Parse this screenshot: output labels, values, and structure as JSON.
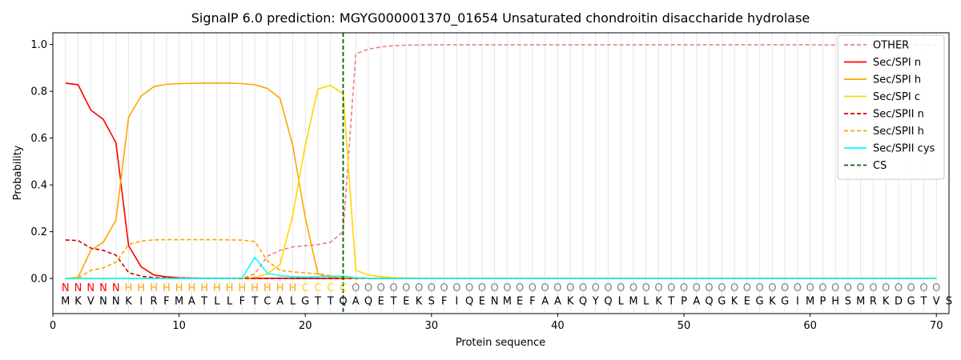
{
  "chart_data": {
    "type": "line",
    "title": "SignalP 6.0 prediction: MGYG000001370_01654 Unsaturated chondroitin disaccharide hydrolase",
    "xlabel": "Protein sequence",
    "ylabel": "Probability",
    "xlim": [
      0,
      71
    ],
    "ylim": [
      -0.15,
      1.05
    ],
    "x_ticks": [
      0,
      10,
      20,
      30,
      40,
      50,
      60,
      70
    ],
    "y_ticks": [
      0.0,
      0.2,
      0.4,
      0.6,
      0.8,
      1.0
    ],
    "x_tick_labels": [
      "0",
      "10",
      "20",
      "30",
      "40",
      "50",
      "60",
      "70"
    ],
    "y_tick_labels": [
      "0.0",
      "0.2",
      "0.4",
      "0.6",
      "0.8",
      "1.0"
    ],
    "grid": "vertical lines at each residue position",
    "legend_position": "top-right",
    "sequence": "MKVNNKIRFMATLLFTCALGTTQAQETEKSFIQENMEFAAKQYQLMLKTPAQGKEGKGIMPHSMRKDGTVS",
    "labels": "NNNNNHHHHHHHHHHHHHHCCCCOOOOOOOOOOOOOOOOOOOOOOOOOOOOOOOOOOOOOOOOOOOOOOO",
    "label_colors": {
      "N": "#ff0000",
      "H": "#ffa500",
      "C": "#ffd700",
      "O": "#808080"
    },
    "cleavage_site": 23,
    "series": [
      {
        "name": "OTHER",
        "color": "#f08080",
        "dash": "dashed",
        "values": [
          0.0,
          0.0,
          0.0,
          0.0,
          0.0,
          0.0,
          0.0,
          0.0,
          0.0,
          0.0,
          0.0,
          0.0,
          0.0,
          0.0,
          0.0,
          0.02,
          0.095,
          0.12,
          0.135,
          0.14,
          0.145,
          0.155,
          0.2,
          0.96,
          0.98,
          0.99,
          0.995,
          0.997,
          0.998,
          0.999,
          0.999,
          0.999,
          0.999,
          0.999,
          0.999,
          0.999,
          0.999,
          0.999,
          0.999,
          0.999,
          0.999,
          0.999,
          0.999,
          0.999,
          0.999,
          0.999,
          0.999,
          0.999,
          0.999,
          0.999,
          0.999,
          0.999,
          0.999,
          0.999,
          0.999,
          0.999,
          0.999,
          0.999,
          0.999,
          0.999,
          0.998,
          0.998,
          0.998,
          0.998,
          0.998,
          0.998,
          0.998,
          0.998,
          0.998,
          0.998
        ]
      },
      {
        "name": "Sec/SPI n",
        "color": "#ff0000",
        "dash": "solid",
        "values": [
          0.835,
          0.828,
          0.72,
          0.68,
          0.58,
          0.14,
          0.05,
          0.015,
          0.007,
          0.003,
          0.002,
          0.001,
          0.001,
          0.001,
          0.001,
          0.001,
          0.001,
          0.001,
          0.0,
          0.0,
          0.0,
          0.0,
          0.0,
          0.0,
          0.0,
          0.0,
          0.0,
          0.0,
          0.0,
          0.0,
          0.0,
          0.0,
          0.0,
          0.0,
          0.0,
          0.0,
          0.0,
          0.0,
          0.0,
          0.0,
          0.0,
          0.0,
          0.0,
          0.0,
          0.0,
          0.0,
          0.0,
          0.0,
          0.0,
          0.0,
          0.0,
          0.0,
          0.0,
          0.0,
          0.0,
          0.0,
          0.0,
          0.0,
          0.0,
          0.0,
          0.0,
          0.0,
          0.0,
          0.0,
          0.0,
          0.0,
          0.0,
          0.0,
          0.0,
          0.0
        ]
      },
      {
        "name": "Sec/SPI h",
        "color": "#ffa500",
        "dash": "solid",
        "values": [
          0.0,
          0.005,
          0.12,
          0.155,
          0.25,
          0.69,
          0.78,
          0.82,
          0.83,
          0.833,
          0.834,
          0.835,
          0.835,
          0.835,
          0.833,
          0.828,
          0.812,
          0.77,
          0.57,
          0.26,
          0.02,
          0.005,
          0.002,
          0.0,
          0.0,
          0.0,
          0.0,
          0.0,
          0.0,
          0.0,
          0.0,
          0.0,
          0.0,
          0.0,
          0.0,
          0.0,
          0.0,
          0.0,
          0.0,
          0.0,
          0.0,
          0.0,
          0.0,
          0.0,
          0.0,
          0.0,
          0.0,
          0.0,
          0.0,
          0.0,
          0.0,
          0.0,
          0.0,
          0.0,
          0.0,
          0.0,
          0.0,
          0.0,
          0.0,
          0.0,
          0.0,
          0.0,
          0.0,
          0.0,
          0.0,
          0.0,
          0.0,
          0.0,
          0.0,
          0.0
        ]
      },
      {
        "name": "Sec/SPI c",
        "color": "#ffd700",
        "dash": "solid",
        "values": [
          0.0,
          0.0,
          0.0,
          0.0,
          0.0,
          0.0,
          0.0,
          0.0,
          0.0,
          0.0,
          0.0,
          0.0,
          0.0,
          0.0,
          0.0,
          0.005,
          0.02,
          0.06,
          0.27,
          0.57,
          0.81,
          0.825,
          0.79,
          0.035,
          0.015,
          0.008,
          0.004,
          0.002,
          0.001,
          0.0,
          0.0,
          0.0,
          0.0,
          0.0,
          0.0,
          0.0,
          0.0,
          0.0,
          0.0,
          0.0,
          0.0,
          0.0,
          0.0,
          0.0,
          0.0,
          0.0,
          0.0,
          0.0,
          0.0,
          0.0,
          0.0,
          0.0,
          0.0,
          0.0,
          0.0,
          0.0,
          0.0,
          0.0,
          0.0,
          0.0,
          0.0,
          0.0,
          0.0,
          0.0,
          0.0,
          0.0,
          0.0,
          0.0,
          0.0,
          0.0
        ]
      },
      {
        "name": "Sec/SPII n",
        "color": "#cc0000",
        "dash": "dashed",
        "values": [
          0.165,
          0.162,
          0.13,
          0.12,
          0.1,
          0.025,
          0.01,
          0.004,
          0.002,
          0.001,
          0.001,
          0.0,
          0.0,
          0.0,
          0.0,
          0.0,
          0.0,
          0.0,
          0.0,
          0.0,
          0.0,
          0.0,
          0.0,
          0.0,
          0.0,
          0.0,
          0.0,
          0.0,
          0.0,
          0.0,
          0.0,
          0.0,
          0.0,
          0.0,
          0.0,
          0.0,
          0.0,
          0.0,
          0.0,
          0.0,
          0.0,
          0.0,
          0.0,
          0.0,
          0.0,
          0.0,
          0.0,
          0.0,
          0.0,
          0.0,
          0.0,
          0.0,
          0.0,
          0.0,
          0.0,
          0.0,
          0.0,
          0.0,
          0.0,
          0.0,
          0.0,
          0.0,
          0.0,
          0.0,
          0.0,
          0.0,
          0.0,
          0.0,
          0.0,
          0.0
        ]
      },
      {
        "name": "Sec/SPII h",
        "color": "#ffa500",
        "dash": "dashed",
        "values": [
          0.0,
          0.002,
          0.035,
          0.045,
          0.07,
          0.145,
          0.16,
          0.165,
          0.166,
          0.166,
          0.166,
          0.166,
          0.166,
          0.165,
          0.164,
          0.158,
          0.075,
          0.035,
          0.028,
          0.024,
          0.02,
          0.012,
          0.005,
          0.0,
          0.0,
          0.0,
          0.0,
          0.0,
          0.0,
          0.0,
          0.0,
          0.0,
          0.0,
          0.0,
          0.0,
          0.0,
          0.0,
          0.0,
          0.0,
          0.0,
          0.0,
          0.0,
          0.0,
          0.0,
          0.0,
          0.0,
          0.0,
          0.0,
          0.0,
          0.0,
          0.0,
          0.0,
          0.0,
          0.0,
          0.0,
          0.0,
          0.0,
          0.0,
          0.0,
          0.0,
          0.0,
          0.0,
          0.0,
          0.0,
          0.0,
          0.0,
          0.0,
          0.0,
          0.0,
          0.0
        ]
      },
      {
        "name": "Sec/SPII cys",
        "color": "#00ffff",
        "dash": "solid",
        "values": [
          0.0,
          0.0,
          0.0,
          0.0,
          0.0,
          0.0,
          0.0,
          0.0,
          0.0,
          0.0,
          0.0,
          0.0,
          0.0,
          0.0,
          0.002,
          0.09,
          0.022,
          0.012,
          0.008,
          0.006,
          0.008,
          0.01,
          0.01,
          0.003,
          0.001,
          0.0,
          0.0,
          0.0,
          0.0,
          0.0,
          0.0,
          0.0,
          0.0,
          0.0,
          0.0,
          0.0,
          0.0,
          0.0,
          0.0,
          0.0,
          0.0,
          0.0,
          0.0,
          0.0,
          0.0,
          0.0,
          0.0,
          0.0,
          0.0,
          0.0,
          0.0,
          0.0,
          0.0,
          0.0,
          0.0,
          0.0,
          0.0,
          0.0,
          0.0,
          0.0,
          0.0,
          0.0,
          0.0,
          0.0,
          0.0,
          0.0,
          0.0,
          0.0,
          0.0,
          0.0
        ]
      },
      {
        "name": "CS",
        "color": "#006400",
        "dash": "dashed",
        "values": []
      }
    ]
  }
}
